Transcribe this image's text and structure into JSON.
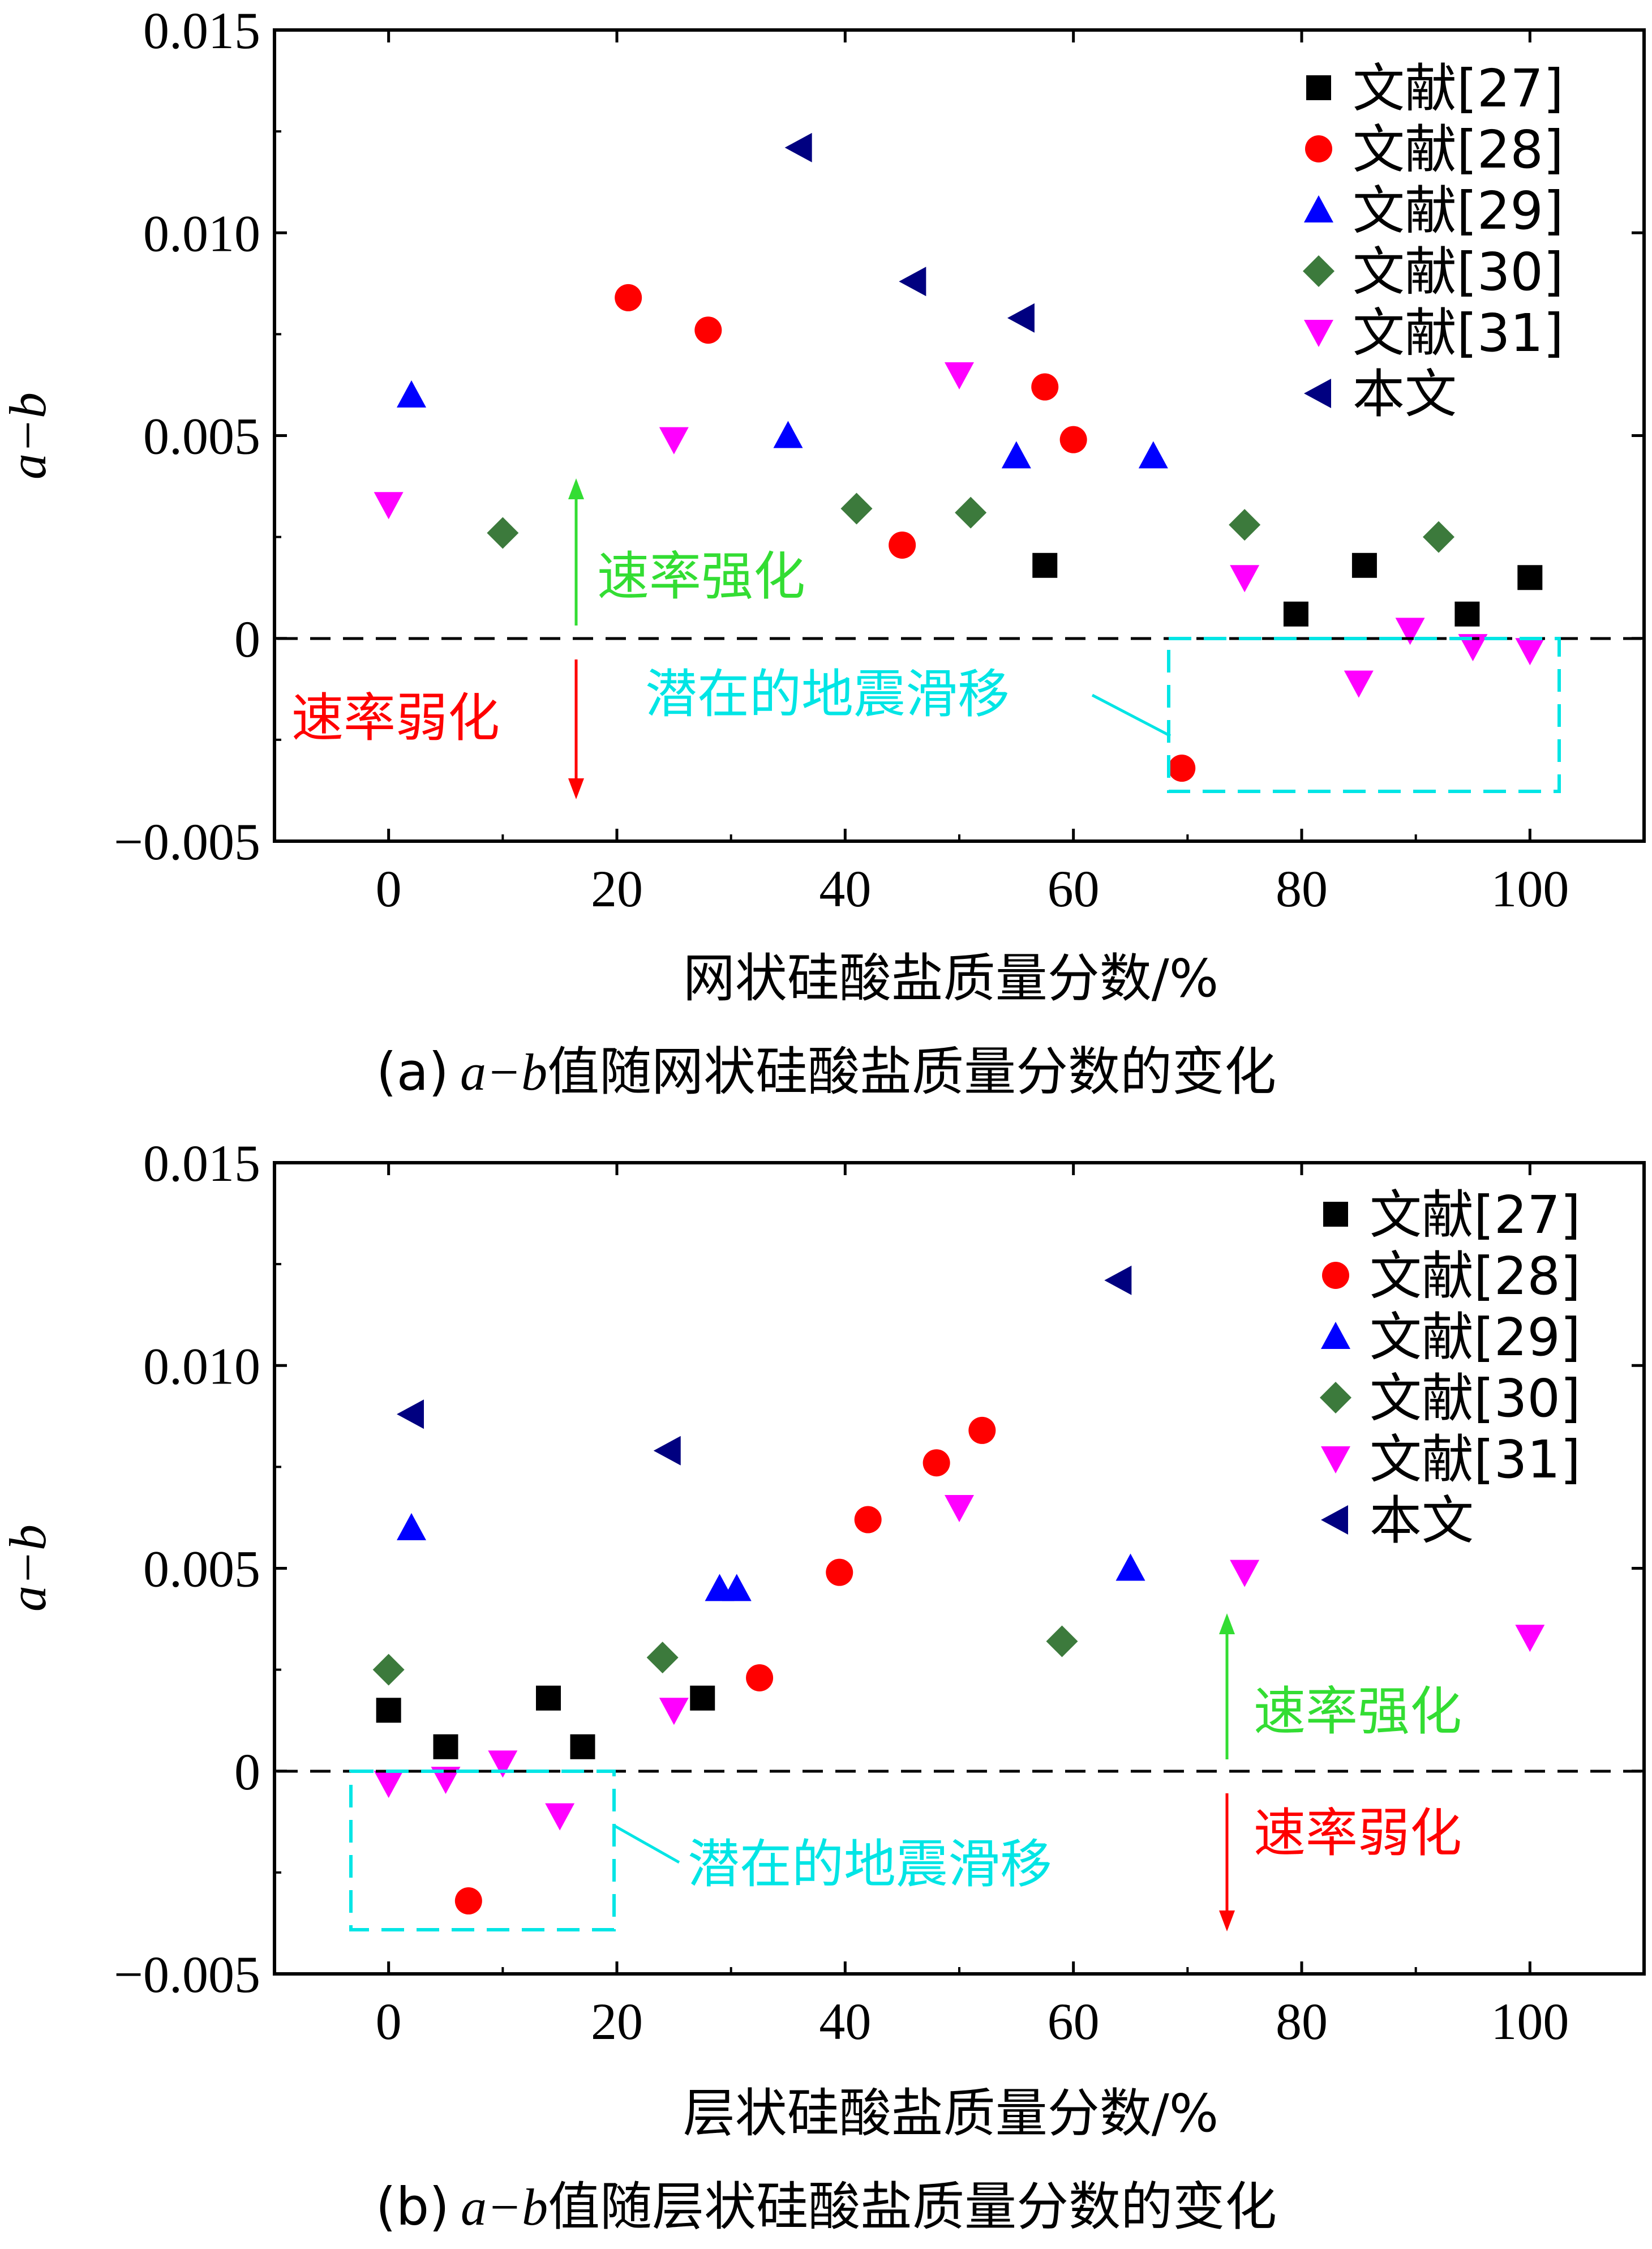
{
  "colors": {
    "ref27": "#000000",
    "ref28": "#ff0000",
    "ref29": "#0000ff",
    "ref30": "#3c7a3c",
    "ref31": "#ff00ff",
    "this_work": "#000080",
    "strengthening": "#33dd33",
    "weakening": "#ff0000",
    "slip_box": "#00e5e5"
  },
  "chart_data": [
    {
      "type": "scatter",
      "panel": "a",
      "caption_prefix": "(a)",
      "caption_var": "a−b",
      "caption_rest": "值随网状硅酸盐质量分数的变化",
      "xlabel": "网状硅酸盐质量分数/%",
      "ylabel": "a−b",
      "xlim": [
        -10,
        110
      ],
      "ylim": [
        -0.005,
        0.015
      ],
      "xticks": [
        "0",
        "20",
        "40",
        "60",
        "80",
        "100"
      ],
      "yticks": [
        "−0.005",
        "0",
        "0.005",
        "0.010",
        "0.015"
      ],
      "legend_position": "top-right",
      "annotations": {
        "strengthening": "速率强化",
        "weakening": "速率弱化",
        "slip": "潜在的地震滑移"
      },
      "series": [
        {
          "name": "文献[27]",
          "marker": "square",
          "color_key": "ref27",
          "points": [
            [
              57.5,
              0.0018
            ],
            [
              79.5,
              0.0006
            ],
            [
              85.5,
              0.0018
            ],
            [
              94.5,
              0.0006
            ],
            [
              100,
              0.0015
            ]
          ]
        },
        {
          "name": "文献[28]",
          "marker": "circle",
          "color_key": "ref28",
          "points": [
            [
              21,
              0.0084
            ],
            [
              28,
              0.0076
            ],
            [
              45,
              0.0023
            ],
            [
              57.5,
              0.0062
            ],
            [
              60,
              0.0049
            ],
            [
              69.5,
              -0.0032
            ]
          ]
        },
        {
          "name": "文献[29]",
          "marker": "triangle-up",
          "color_key": "ref29",
          "points": [
            [
              2,
              0.006
            ],
            [
              35,
              0.005
            ],
            [
              55,
              0.0045
            ],
            [
              67,
              0.0045
            ]
          ]
        },
        {
          "name": "文献[30]",
          "marker": "diamond",
          "color_key": "ref30",
          "points": [
            [
              10,
              0.0026
            ],
            [
              41,
              0.0032
            ],
            [
              51,
              0.0031
            ],
            [
              75,
              0.0028
            ],
            [
              92,
              0.0025
            ]
          ]
        },
        {
          "name": "文献[31]",
          "marker": "triangle-down",
          "color_key": "ref31",
          "points": [
            [
              0,
              0.0033
            ],
            [
              25,
              0.0049
            ],
            [
              50,
              0.0065
            ],
            [
              75,
              0.0015
            ],
            [
              85,
              -0.0011
            ],
            [
              89.5,
              0.0002
            ],
            [
              95,
              -0.0002
            ],
            [
              100,
              -0.0003
            ]
          ]
        },
        {
          "name": "本文",
          "marker": "triangle-left",
          "color_key": "this_work",
          "points": [
            [
              36,
              0.0121
            ],
            [
              46,
              0.0088
            ],
            [
              55.5,
              0.0079
            ]
          ]
        }
      ]
    },
    {
      "type": "scatter",
      "panel": "b",
      "caption_prefix": "(b)",
      "caption_var": "a−b",
      "caption_rest": "值随层状硅酸盐质量分数的变化",
      "xlabel": "层状硅酸盐质量分数/%",
      "ylabel": "a−b",
      "xlim": [
        -10,
        110
      ],
      "ylim": [
        -0.005,
        0.015
      ],
      "xticks": [
        "0",
        "20",
        "40",
        "60",
        "80",
        "100"
      ],
      "yticks": [
        "−0.005",
        "0",
        "0.005",
        "0.010",
        "0.015"
      ],
      "legend_position": "top-right",
      "annotations": {
        "strengthening": "速率强化",
        "weakening": "速率弱化",
        "slip": "潜在的地震滑移"
      },
      "series": [
        {
          "name": "文献[27]",
          "marker": "square",
          "color_key": "ref27",
          "points": [
            [
              0,
              0.0015
            ],
            [
              5,
              0.0006
            ],
            [
              14,
              0.0018
            ],
            [
              17,
              0.0006
            ],
            [
              27.5,
              0.0018
            ]
          ]
        },
        {
          "name": "文献[28]",
          "marker": "circle",
          "color_key": "ref28",
          "points": [
            [
              7,
              -0.0032
            ],
            [
              32.5,
              0.0023
            ],
            [
              39.5,
              0.0049
            ],
            [
              42,
              0.0062
            ],
            [
              48,
              0.0076
            ],
            [
              52,
              0.0084
            ]
          ]
        },
        {
          "name": "文献[29]",
          "marker": "triangle-up",
          "color_key": "ref29",
          "points": [
            [
              2,
              0.006
            ],
            [
              29,
              0.0045
            ],
            [
              30.5,
              0.0045
            ],
            [
              65,
              0.005
            ]
          ]
        },
        {
          "name": "文献[30]",
          "marker": "diamond",
          "color_key": "ref30",
          "points": [
            [
              0,
              0.0025
            ],
            [
              24,
              0.0028
            ],
            [
              59,
              0.0032
            ]
          ]
        },
        {
          "name": "文献[31]",
          "marker": "triangle-down",
          "color_key": "ref31",
          "points": [
            [
              0,
              -0.0003
            ],
            [
              5,
              -0.0002
            ],
            [
              10,
              0.0002
            ],
            [
              15,
              -0.0011
            ],
            [
              25,
              0.0015
            ],
            [
              50,
              0.0065
            ],
            [
              75,
              0.0049
            ],
            [
              100,
              0.0033
            ]
          ]
        },
        {
          "name": "本文",
          "marker": "triangle-left",
          "color_key": "this_work",
          "points": [
            [
              2,
              0.0088
            ],
            [
              24.5,
              0.0079
            ],
            [
              64,
              0.0121
            ]
          ]
        }
      ]
    }
  ]
}
